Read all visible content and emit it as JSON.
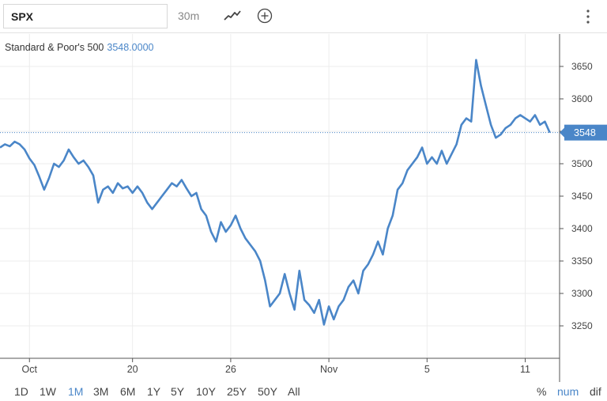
{
  "toolbar": {
    "symbol": "SPX",
    "interval": "30m",
    "chart_type_icon": "line-chart-icon",
    "add_icon": "plus-circle-icon",
    "menu_icon": "vertical-dots-icon"
  },
  "legend": {
    "name": "Standard & Poor's 500",
    "value": "3548.0000"
  },
  "last_price_label": "3548",
  "colors": {
    "line": "#4a86c8",
    "grid": "#ececec",
    "accent": "#4a86c8"
  },
  "ranges": [
    "1D",
    "1W",
    "1M",
    "3M",
    "6M",
    "1Y",
    "5Y",
    "10Y",
    "25Y",
    "50Y",
    "All"
  ],
  "active_range": "1M",
  "modes": [
    "%",
    "num",
    "dif"
  ],
  "active_mode": "num",
  "chart_data": {
    "type": "line",
    "title": "",
    "xlabel": "",
    "ylabel": "",
    "ylim": [
      3200,
      3700
    ],
    "y_ticks": [
      3250,
      3300,
      3350,
      3400,
      3450,
      3500,
      3550,
      3600,
      3650
    ],
    "x_ticks": [
      {
        "label": "Oct",
        "t": 3
      },
      {
        "label": "20",
        "t": 13.5
      },
      {
        "label": "26",
        "t": 23.5
      },
      {
        "label": "Nov",
        "t": 33.5
      },
      {
        "label": "5",
        "t": 43.5
      },
      {
        "label": "11",
        "t": 53.5
      }
    ],
    "last_value": 3548,
    "series": [
      {
        "name": "Standard & Poor's 500",
        "points": [
          [
            0,
            3525
          ],
          [
            0.5,
            3530
          ],
          [
            1,
            3527
          ],
          [
            1.5,
            3534
          ],
          [
            2,
            3530
          ],
          [
            2.5,
            3522
          ],
          [
            3,
            3508
          ],
          [
            3.5,
            3498
          ],
          [
            4,
            3480
          ],
          [
            4.5,
            3460
          ],
          [
            5,
            3478
          ],
          [
            5.5,
            3500
          ],
          [
            6,
            3495
          ],
          [
            6.5,
            3505
          ],
          [
            7,
            3522
          ],
          [
            7.5,
            3510
          ],
          [
            8,
            3500
          ],
          [
            8.5,
            3505
          ],
          [
            9,
            3495
          ],
          [
            9.5,
            3482
          ],
          [
            10,
            3440
          ],
          [
            10.5,
            3460
          ],
          [
            11,
            3465
          ],
          [
            11.5,
            3455
          ],
          [
            12,
            3470
          ],
          [
            12.5,
            3462
          ],
          [
            13,
            3465
          ],
          [
            13.5,
            3455
          ],
          [
            14,
            3465
          ],
          [
            14.5,
            3455
          ],
          [
            15,
            3440
          ],
          [
            15.5,
            3430
          ],
          [
            16,
            3440
          ],
          [
            16.5,
            3450
          ],
          [
            17,
            3460
          ],
          [
            17.5,
            3470
          ],
          [
            18,
            3465
          ],
          [
            18.5,
            3475
          ],
          [
            19,
            3462
          ],
          [
            19.5,
            3450
          ],
          [
            20,
            3455
          ],
          [
            20.5,
            3430
          ],
          [
            21,
            3420
          ],
          [
            21.5,
            3395
          ],
          [
            22,
            3380
          ],
          [
            22.5,
            3410
          ],
          [
            23,
            3395
          ],
          [
            23.5,
            3405
          ],
          [
            24,
            3420
          ],
          [
            24.5,
            3400
          ],
          [
            25,
            3385
          ],
          [
            25.5,
            3375
          ],
          [
            26,
            3365
          ],
          [
            26.5,
            3350
          ],
          [
            27,
            3320
          ],
          [
            27.5,
            3280
          ],
          [
            28,
            3290
          ],
          [
            28.5,
            3300
          ],
          [
            29,
            3330
          ],
          [
            29.5,
            3300
          ],
          [
            30,
            3275
          ],
          [
            30.5,
            3335
          ],
          [
            31,
            3290
          ],
          [
            31.5,
            3282
          ],
          [
            32,
            3270
          ],
          [
            32.5,
            3290
          ],
          [
            33,
            3252
          ],
          [
            33.5,
            3280
          ],
          [
            34,
            3260
          ],
          [
            34.5,
            3280
          ],
          [
            35,
            3290
          ],
          [
            35.5,
            3310
          ],
          [
            36,
            3320
          ],
          [
            36.5,
            3300
          ],
          [
            37,
            3335
          ],
          [
            37.5,
            3345
          ],
          [
            38,
            3360
          ],
          [
            38.5,
            3380
          ],
          [
            39,
            3360
          ],
          [
            39.5,
            3400
          ],
          [
            40,
            3420
          ],
          [
            40.5,
            3460
          ],
          [
            41,
            3470
          ],
          [
            41.5,
            3490
          ],
          [
            42,
            3500
          ],
          [
            42.5,
            3510
          ],
          [
            43,
            3525
          ],
          [
            43.5,
            3500
          ],
          [
            44,
            3510
          ],
          [
            44.5,
            3500
          ],
          [
            45,
            3520
          ],
          [
            45.5,
            3500
          ],
          [
            46,
            3515
          ],
          [
            46.5,
            3530
          ],
          [
            47,
            3560
          ],
          [
            47.5,
            3570
          ],
          [
            48,
            3565
          ],
          [
            48.5,
            3660
          ],
          [
            49,
            3620
          ],
          [
            49.5,
            3590
          ],
          [
            50,
            3560
          ],
          [
            50.5,
            3540
          ],
          [
            51,
            3545
          ],
          [
            51.5,
            3555
          ],
          [
            52,
            3560
          ],
          [
            52.5,
            3570
          ],
          [
            53,
            3575
          ],
          [
            53.5,
            3570
          ],
          [
            54,
            3565
          ],
          [
            54.5,
            3575
          ],
          [
            55,
            3560
          ],
          [
            55.5,
            3565
          ],
          [
            56,
            3548
          ]
        ]
      }
    ]
  }
}
